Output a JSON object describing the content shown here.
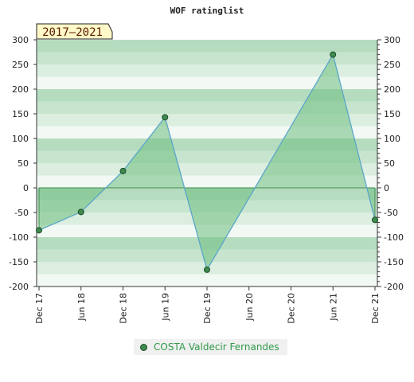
{
  "chart_data": {
    "type": "area",
    "title": "WOF ratinglist",
    "badge": "2017–2021",
    "x_ticks": [
      "Dec 17",
      "Jun 18",
      "Dec 18",
      "Jun 19",
      "Dec 19",
      "Jun 20",
      "Dec 20",
      "Jun 21",
      "Dec 21"
    ],
    "y_ticks": [
      300,
      250,
      200,
      150,
      100,
      50,
      0,
      -50,
      -100,
      -150,
      -200
    ],
    "ylim": [
      -200,
      300
    ],
    "series": [
      {
        "name": "COSTA Valdecir Fernandes",
        "points": [
          {
            "x": "Dec 17",
            "y": -86
          },
          {
            "x": "Jun 18",
            "y": -49
          },
          {
            "x": "Dec 18",
            "y": 34
          },
          {
            "x": "Jun 19",
            "y": 143
          },
          {
            "x": "Dec 19",
            "y": -166
          },
          {
            "x": "Jun 21",
            "y": 270
          },
          {
            "x": "Dec 21",
            "y": -65
          }
        ]
      }
    ],
    "legend_position": "bottom",
    "colors": {
      "band_dark": "#b3dcbf",
      "band_light": "#f2f9f4",
      "fill": "#6ebf7f",
      "line": "#5aa6c8",
      "marker": "#3f8a4e",
      "badge_bg": "#fff8c8"
    }
  }
}
